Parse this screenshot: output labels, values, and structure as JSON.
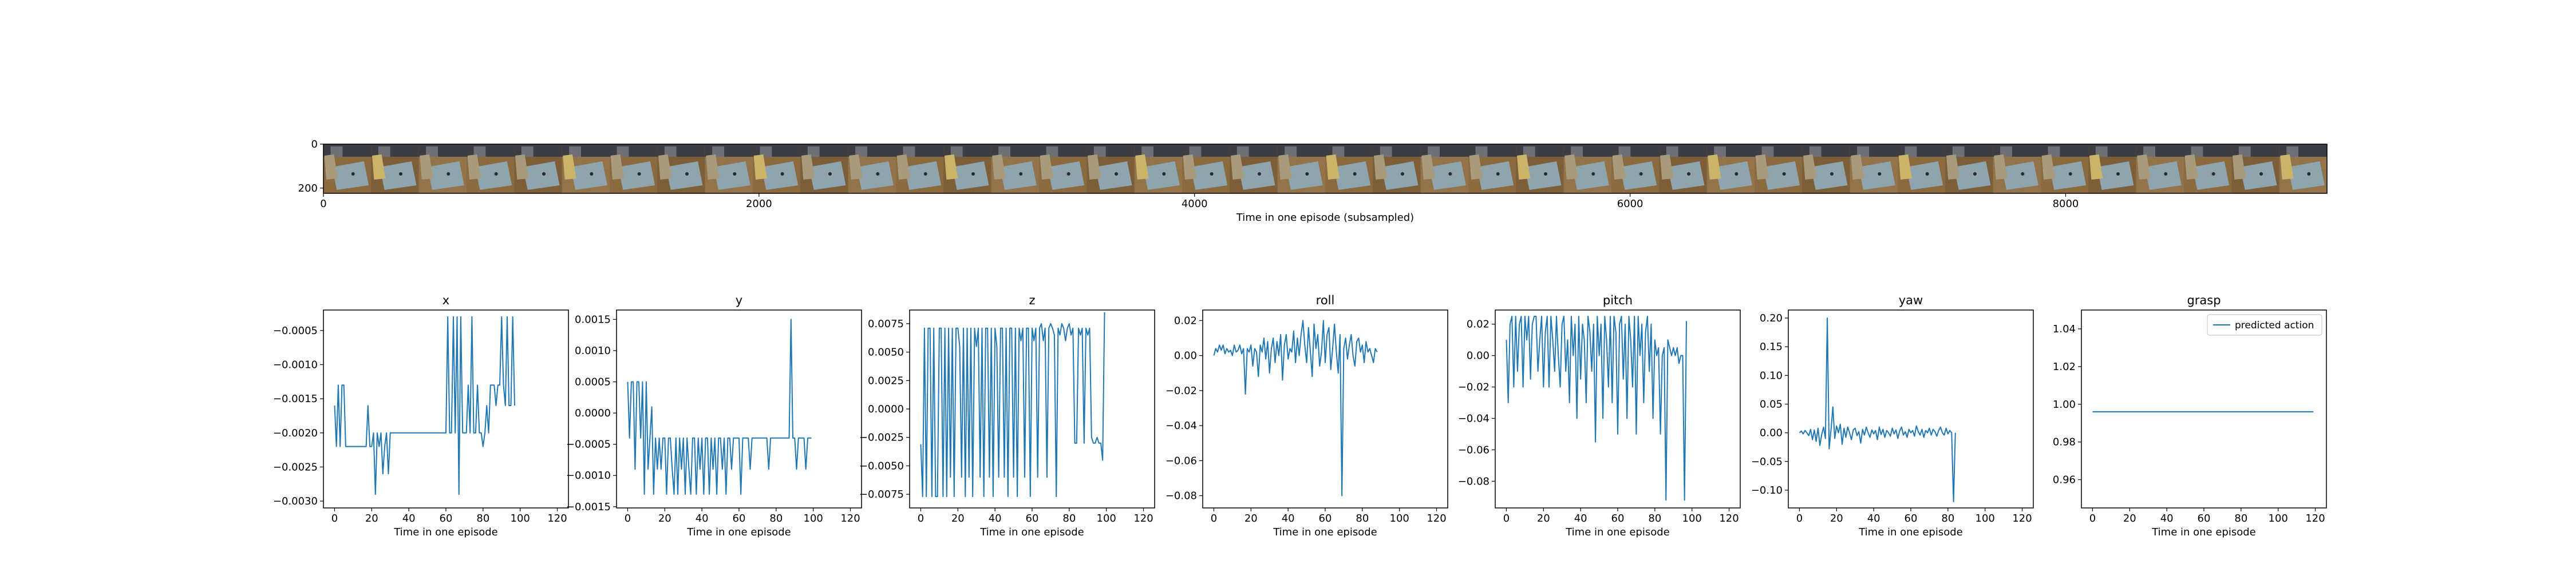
{
  "image_strip": {
    "xlabel": "Time in one episode (subsampled)",
    "x_ticks": [
      0,
      2000,
      4000,
      6000,
      8000
    ],
    "y_ticks": [
      0,
      200
    ],
    "xlim": [
      0,
      9200
    ],
    "ylim": [
      224,
      0
    ]
  },
  "chart_data": [
    {
      "type": "line",
      "title": "x",
      "xlabel": "Time in one episode",
      "ylabel": "",
      "xlim": [
        -6,
        126
      ],
      "ylim": [
        -0.0031,
        -0.0002
      ],
      "x_ticks": [
        0,
        20,
        40,
        60,
        80,
        100,
        120
      ],
      "y_ticks": [
        -0.0005,
        -0.001,
        -0.0015,
        -0.002,
        -0.0025,
        -0.003
      ],
      "y_tick_labels": [
        "−0.0005",
        "−0.0010",
        "−0.0015",
        "−0.0020",
        "−0.0025",
        "−0.0030"
      ],
      "grid": false,
      "series": [
        {
          "name": "",
          "values": [
            -0.0016,
            -0.0022,
            -0.0013,
            -0.0022,
            -0.0013,
            -0.0013,
            -0.0022,
            -0.0022,
            -0.0022,
            -0.0022,
            -0.0022,
            -0.0022,
            -0.0022,
            -0.0022,
            -0.0022,
            -0.0022,
            -0.0022,
            -0.0022,
            -0.0016,
            -0.0022,
            -0.0022,
            -0.002,
            -0.0029,
            -0.002,
            -0.0022,
            -0.002,
            -0.0026,
            -0.0022,
            -0.002,
            -0.0026,
            -0.002,
            -0.002,
            -0.002,
            -0.002,
            -0.002,
            -0.002,
            -0.002,
            -0.002,
            -0.002,
            -0.002,
            -0.002,
            -0.002,
            -0.002,
            -0.002,
            -0.002,
            -0.002,
            -0.002,
            -0.002,
            -0.002,
            -0.002,
            -0.002,
            -0.002,
            -0.002,
            -0.002,
            -0.002,
            -0.002,
            -0.002,
            -0.002,
            -0.002,
            -0.002,
            -0.002,
            -0.0003,
            -0.002,
            -0.002,
            -0.0003,
            -0.002,
            -0.0003,
            -0.0029,
            -0.0003,
            -0.002,
            -0.002,
            -0.002,
            -0.0013,
            -0.002,
            -0.0003,
            -0.002,
            -0.002,
            -0.0013,
            -0.002,
            -0.002,
            -0.0022,
            -0.002,
            -0.0016,
            -0.002,
            -0.0013,
            -0.0013,
            -0.0013,
            -0.0016,
            -0.0013,
            -0.0013,
            -0.0003,
            -0.0013,
            -0.0016,
            -0.0003,
            -0.0016,
            -0.0016,
            -0.0003,
            -0.0016
          ]
        }
      ]
    },
    {
      "type": "line",
      "title": "y",
      "xlabel": "Time in one episode",
      "ylabel": "",
      "xlim": [
        -6,
        126
      ],
      "ylim": [
        -0.00152,
        0.00165
      ],
      "x_ticks": [
        0,
        20,
        40,
        60,
        80,
        100,
        120
      ],
      "y_ticks": [
        0.0015,
        0.001,
        0.0005,
        0.0,
        -0.0005,
        -0.001,
        -0.0015
      ],
      "y_tick_labels": [
        "0.0015",
        "0.0010",
        "0.0005",
        "0.0000",
        "−0.0005",
        "−0.0010",
        "−0.0015"
      ],
      "grid": false,
      "series": [
        {
          "name": "",
          "values": [
            0.0005,
            -0.0004,
            0.0005,
            0.0005,
            -0.0009,
            0.0005,
            0.0005,
            -0.0004,
            0.0005,
            -0.0013,
            0.0005,
            -0.0009,
            -0.0004,
            0.0001,
            -0.0013,
            -0.0004,
            -0.0009,
            -0.0004,
            -0.0009,
            -0.0004,
            -0.0004,
            -0.0013,
            -0.0004,
            -0.0004,
            -0.0009,
            -0.0013,
            -0.0004,
            -0.0013,
            -0.0004,
            -0.0009,
            -0.0004,
            -0.0013,
            -0.0004,
            -0.0009,
            -0.0013,
            -0.0004,
            -0.0004,
            -0.0013,
            -0.0004,
            -0.0009,
            -0.0004,
            -0.0013,
            -0.0004,
            -0.0004,
            -0.0013,
            -0.0004,
            -0.0009,
            -0.0004,
            -0.0013,
            -0.0004,
            -0.0004,
            -0.0009,
            -0.0004,
            -0.0013,
            -0.0004,
            -0.0004,
            -0.0009,
            -0.0004,
            -0.0004,
            -0.0004,
            -0.0004,
            -0.0013,
            -0.0004,
            -0.0004,
            -0.0004,
            -0.0004,
            -0.0009,
            -0.0004,
            -0.0004,
            -0.0004,
            -0.0004,
            -0.0004,
            -0.0004,
            -0.0004,
            -0.0004,
            -0.0004,
            -0.0009,
            -0.0004,
            -0.0004,
            -0.0004,
            -0.0004,
            -0.0004,
            -0.0004,
            -0.0004,
            -0.0004,
            -0.0004,
            -0.0004,
            -0.0004,
            0.0015,
            -0.0004,
            -0.0004,
            -0.0009,
            -0.0004,
            -0.0004,
            -0.0004,
            -0.0004,
            -0.0009,
            -0.0004,
            -0.0004,
            -0.0004
          ]
        }
      ]
    },
    {
      "type": "line",
      "title": "z",
      "xlabel": "Time in one episode",
      "ylabel": "",
      "xlim": [
        -6,
        126
      ],
      "ylim": [
        -0.0087,
        0.0087
      ],
      "x_ticks": [
        0,
        20,
        40,
        60,
        80,
        100,
        120
      ],
      "y_ticks": [
        0.0075,
        0.005,
        0.0025,
        0.0,
        -0.0025,
        -0.005,
        -0.0075
      ],
      "y_tick_labels": [
        "0.0075",
        "0.0050",
        "0.0025",
        "0.0000",
        "−0.0025",
        "−0.0050",
        "−0.0075"
      ],
      "grid": false,
      "series": [
        {
          "name": "",
          "values": [
            -0.0031,
            -0.0077,
            0.0071,
            -0.0077,
            0.0071,
            0.0071,
            -0.0077,
            0.0071,
            -0.0077,
            -0.0077,
            0.0071,
            0.0071,
            -0.0077,
            0.0071,
            -0.0077,
            0.0071,
            -0.006,
            0.0071,
            -0.0077,
            0.0071,
            0.0071,
            0.0055,
            -0.006,
            0.0071,
            -0.0077,
            0.0071,
            -0.006,
            0.0071,
            -0.0077,
            0.0071,
            0.0055,
            0.0071,
            -0.006,
            0.0071,
            -0.0077,
            0.0071,
            0.0071,
            -0.006,
            0.0071,
            -0.0077,
            0.0071,
            0.0055,
            -0.006,
            0.0071,
            0.0071,
            -0.006,
            0.0071,
            -0.0077,
            0.0071,
            0.0071,
            -0.006,
            0.0071,
            -0.0077,
            0.0071,
            0.006,
            0.0071,
            -0.006,
            0.0071,
            0.0071,
            -0.0077,
            0.0071,
            0.006,
            0.0071,
            -0.006,
            0.0071,
            0.0075,
            0.006,
            0.0071,
            -0.006,
            0.0071,
            0.0075,
            0.0071,
            0.0065,
            -0.0077,
            0.0071,
            0.0065,
            0.0075,
            0.0071,
            0.006,
            0.0071,
            0.0075,
            0.0065,
            0.0071,
            -0.003,
            -0.003,
            0.0071,
            0.0065,
            0.0071,
            -0.003,
            0.0071,
            0.0065,
            0.0071,
            -0.0025,
            -0.003,
            -0.003,
            -0.0025,
            -0.003,
            -0.003,
            -0.0045,
            0.0085
          ]
        }
      ]
    },
    {
      "type": "line",
      "title": "roll",
      "xlabel": "Time in one episode",
      "ylabel": "",
      "xlim": [
        -6,
        126
      ],
      "ylim": [
        -0.087,
        0.026
      ],
      "x_ticks": [
        0,
        20,
        40,
        60,
        80,
        100,
        120
      ],
      "y_ticks": [
        0.02,
        0.0,
        -0.02,
        -0.04,
        -0.06,
        -0.08
      ],
      "y_tick_labels": [
        "0.02",
        "0.00",
        "−0.02",
        "−0.04",
        "−0.06",
        "−0.08"
      ],
      "grid": false,
      "series": [
        {
          "name": "",
          "values": [
            0.0,
            0.004,
            0.002,
            0.006,
            0.003,
            0.006,
            0.001,
            0.004,
            0.002,
            0.003,
            0.0,
            0.006,
            0.002,
            0.003,
            0.006,
            0.001,
            0.004,
            -0.022,
            0.004,
            0.002,
            0.006,
            -0.006,
            0.004,
            0.002,
            -0.012,
            0.006,
            0.002,
            0.01,
            -0.002,
            0.008,
            -0.01,
            0.004,
            0.01,
            -0.004,
            0.008,
            0.0,
            0.012,
            -0.014,
            0.006,
            0.012,
            -0.002,
            0.004,
            0.002,
            0.014,
            -0.004,
            0.01,
            0.0,
            0.012,
            0.02,
            0.006,
            -0.004,
            0.016,
            0.002,
            -0.012,
            0.018,
            0.004,
            0.012,
            -0.006,
            0.002,
            0.02,
            -0.004,
            0.012,
            0.016,
            -0.008,
            0.004,
            0.018,
            0.002,
            -0.01,
            0.012,
            -0.08,
            0.004,
            0.01,
            -0.002,
            0.006,
            0.012,
            0.0,
            -0.006,
            0.008,
            0.01,
            0.002,
            0.006,
            -0.004,
            0.008,
            0.002,
            0.004,
            0.0,
            -0.004,
            0.004,
            0.002
          ]
        }
      ]
    },
    {
      "type": "line",
      "title": "pitch",
      "xlabel": "Time in one episode",
      "ylabel": "",
      "xlim": [
        -6,
        126
      ],
      "ylim": [
        -0.097,
        0.029
      ],
      "x_ticks": [
        0,
        20,
        40,
        60,
        80,
        100,
        120
      ],
      "y_ticks": [
        0.02,
        0.0,
        -0.02,
        -0.04,
        -0.06,
        -0.08
      ],
      "y_tick_labels": [
        "0.02",
        "0.00",
        "−0.02",
        "−0.04",
        "−0.06",
        "−0.08"
      ],
      "grid": false,
      "series": [
        {
          "name": "",
          "values": [
            0.01,
            -0.03,
            0.02,
            0.025,
            -0.02,
            0.025,
            -0.01,
            0.02,
            0.025,
            -0.02,
            0.025,
            0.01,
            0.025,
            -0.015,
            0.02,
            0.025,
            0.025,
            -0.01,
            0.01,
            0.025,
            -0.02,
            0.015,
            0.025,
            -0.02,
            0.025,
            0.01,
            -0.01,
            0.025,
            0.0,
            -0.02,
            0.02,
            0.025,
            -0.01,
            0.01,
            -0.03,
            0.025,
            0.0,
            0.02,
            -0.04,
            0.025,
            -0.015,
            0.02,
            0.01,
            -0.03,
            0.025,
            0.015,
            -0.01,
            0.02,
            -0.055,
            0.025,
            0.0,
            0.02,
            -0.04,
            0.025,
            0.01,
            -0.02,
            0.025,
            -0.03,
            0.025,
            0.015,
            -0.05,
            0.02,
            0.025,
            -0.015,
            0.02,
            -0.04,
            0.025,
            0.01,
            -0.02,
            0.025,
            -0.05,
            0.025,
            0.0,
            0.02,
            -0.03,
            0.015,
            0.025,
            -0.01,
            0.02,
            -0.04,
            0.01,
            0.0,
            0.005,
            -0.05,
            0.0,
            0.005,
            -0.092,
            0.01,
            0.005,
            0.0,
            0.005,
            0.0,
            0.005,
            -0.005,
            0.0,
            0.0,
            -0.092,
            0.022
          ]
        }
      ]
    },
    {
      "type": "line",
      "title": "yaw",
      "xlabel": "Time in one episode",
      "ylabel": "",
      "xlim": [
        -6,
        126
      ],
      "ylim": [
        -0.131,
        0.214
      ],
      "x_ticks": [
        0,
        20,
        40,
        60,
        80,
        100,
        120
      ],
      "y_ticks": [
        0.2,
        0.15,
        0.1,
        0.05,
        0.0,
        -0.05,
        -0.1
      ],
      "y_tick_labels": [
        "0.20",
        "0.15",
        "0.10",
        "0.05",
        "0.00",
        "−0.05",
        "−0.10"
      ],
      "grid": false,
      "series": [
        {
          "name": "",
          "values": [
            0.0,
            0.003,
            -0.002,
            0.004,
            0.0,
            -0.005,
            0.006,
            -0.012,
            0.005,
            -0.015,
            0.008,
            -0.022,
            -0.003,
            0.01,
            -0.01,
            0.2,
            -0.028,
            0.005,
            0.045,
            -0.01,
            0.012,
            0.0,
            0.015,
            -0.02,
            0.008,
            -0.008,
            0.01,
            0.0,
            -0.012,
            0.005,
            0.008,
            -0.005,
            0.002,
            -0.018,
            0.006,
            -0.004,
            0.01,
            0.0,
            -0.008,
            0.005,
            -0.002,
            0.004,
            -0.012,
            0.01,
            -0.003,
            0.006,
            -0.008,
            0.004,
            0.0,
            -0.006,
            0.008,
            -0.002,
            0.005,
            -0.01,
            0.003,
            0.01,
            -0.004,
            0.002,
            -0.008,
            0.006,
            0.0,
            0.004,
            -0.006,
            0.012,
            0.002,
            -0.004,
            0.006,
            -0.008,
            0.004,
            0.0,
            0.008,
            -0.004,
            0.006,
            0.002,
            -0.006,
            0.004,
            0.01,
            0.0,
            -0.004,
            0.008,
            -0.002,
            0.004,
            0.0,
            -0.12,
            0.0
          ]
        }
      ]
    },
    {
      "type": "line",
      "title": "grasp",
      "xlabel": "Time in one episode",
      "ylabel": "",
      "xlim": [
        -6,
        126
      ],
      "ylim": [
        0.945,
        1.05
      ],
      "x_ticks": [
        0,
        20,
        40,
        60,
        80,
        100,
        120
      ],
      "y_ticks": [
        1.04,
        1.02,
        1.0,
        0.98,
        0.96
      ],
      "y_tick_labels": [
        "1.04",
        "1.02",
        "1.00",
        "0.98",
        "0.96"
      ],
      "grid": false,
      "legend": "top-right",
      "series": [
        {
          "name": "predicted action",
          "x": [
            0,
            119
          ],
          "values": [
            0.996,
            0.996
          ]
        }
      ]
    }
  ],
  "colors": {
    "line": "#1f77b4",
    "axis": "#000000",
    "text": "#000000",
    "legend_border": "#cccccc"
  }
}
